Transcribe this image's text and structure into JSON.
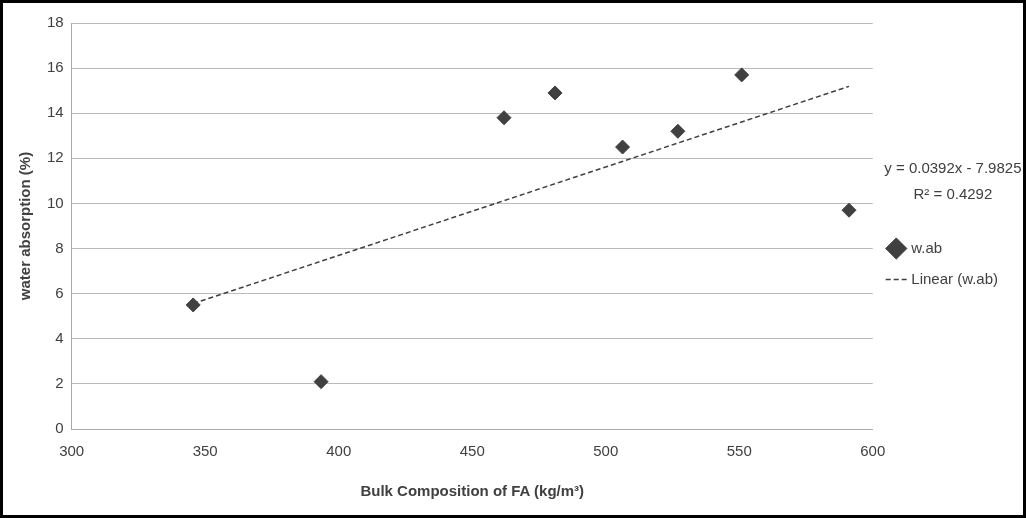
{
  "chart_data": {
    "type": "scatter",
    "xlabel": "Bulk Composition of FA (kg/m³)",
    "ylabel": "water absorption (%)",
    "xlim": [
      300,
      600
    ],
    "xticks": [
      300,
      350,
      400,
      450,
      500,
      550,
      600
    ],
    "ylim": [
      0,
      18
    ],
    "yticks": [
      0,
      2,
      4,
      6,
      8,
      10,
      12,
      14,
      16,
      18
    ],
    "grid": "y",
    "legend": "right",
    "marker": "diamond",
    "series": [
      {
        "name": "w.ab",
        "color": "#404040",
        "x": [
          345.5,
          393.4,
          461.9,
          481,
          506.3,
          527,
          550.9,
          591.1
        ],
        "values": [
          5.5,
          2.1,
          13.8,
          14.9,
          12.5,
          13.2,
          15.7,
          9.7
        ]
      },
      {
        "name": "Linear (w.ab)",
        "type": "line",
        "color": "#404040",
        "line_style": "dashed",
        "marker": "none",
        "x": [
          345.5,
          591.1
        ],
        "values": [
          5.56,
          15.19
        ]
      }
    ],
    "annotations": [
      "y = 0.0392x - 7.9825",
      "R² = 0.4292"
    ]
  }
}
